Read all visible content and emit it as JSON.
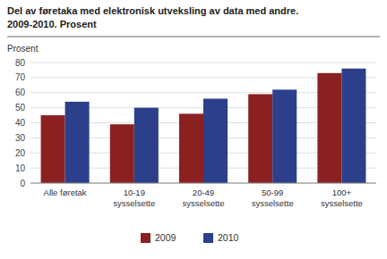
{
  "chart_data": {
    "type": "bar",
    "title": "Del av føretaka med elektronisk utveksling av data med andre.",
    "subtitle": "2009-2010. Prosent",
    "ylabel": "Prosent",
    "categories": [
      "Alle føretak",
      "10-19\nsysselsette",
      "20-49\nsysselsette",
      "50-99\nsysselsette",
      "100+\nsysselsette"
    ],
    "series": [
      {
        "name": "2009",
        "color": "#8B2020",
        "values": [
          45,
          39,
          46,
          59,
          73
        ]
      },
      {
        "name": "2010",
        "color": "#2B3F8B",
        "values": [
          54,
          50,
          56,
          62,
          76
        ]
      }
    ],
    "ylim": [
      0,
      80
    ],
    "yticks": [
      0,
      10,
      20,
      30,
      40,
      50,
      60,
      70,
      80
    ],
    "grid": true,
    "legend": "bottom"
  }
}
